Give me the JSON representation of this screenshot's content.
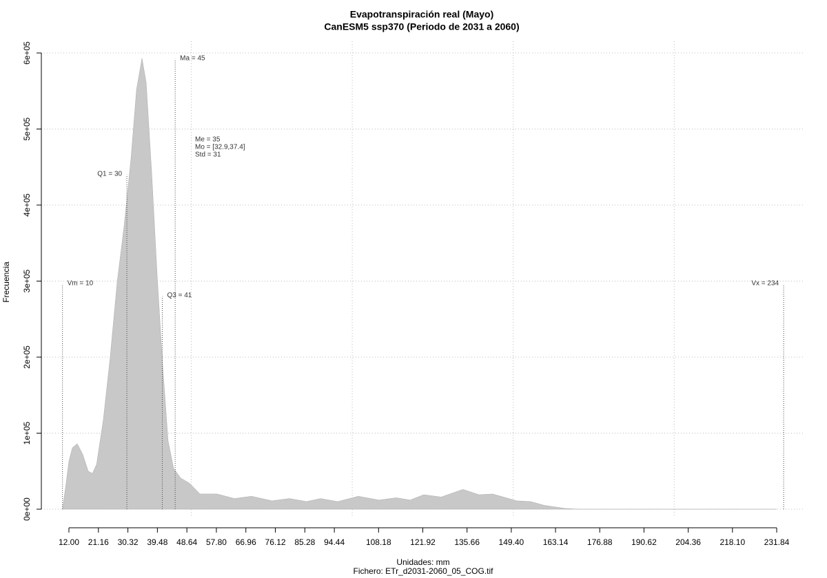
{
  "chart_data": {
    "type": "area",
    "title": "Evapotranspiración real (Mayo)",
    "subtitle": "CanESM5 ssp370 (Periodo de 2031 a 2060)",
    "xlabel": "Unidades: mm",
    "footer": "Fichero: ETr_d2031-2060_05_COG.tif",
    "ylabel": "Frecuencia",
    "color": "#c8c8c8",
    "x": [
      10,
      11,
      12,
      13.1,
      14.6,
      16.3,
      18,
      19.3,
      20.6,
      22.7,
      24.8,
      27,
      29.1,
      31.3,
      33,
      34.7,
      36,
      37.7,
      39.4,
      41.1,
      42.8,
      44.5,
      46.7,
      49.5,
      52.7,
      58,
      63.4,
      68.7,
      75.1,
      80.5,
      85.8,
      90.1,
      95.5,
      101.9,
      108.3,
      113.7,
      118,
      122.2,
      127.6,
      134.4,
      139.4,
      143.6,
      151.1,
      155.4,
      159.7,
      166.1,
      170.4,
      231.84
    ],
    "values": [
      0,
      30000,
      63000,
      81000,
      86000,
      72000,
      50000,
      47000,
      59000,
      118000,
      199000,
      299000,
      371000,
      462000,
      552000,
      593000,
      561000,
      443000,
      308000,
      190000,
      90000,
      54000,
      41000,
      34000,
      20000,
      20000,
      14000,
      17000,
      11000,
      14000,
      10000,
      14000,
      10000,
      17000,
      12000,
      15000,
      12000,
      19000,
      16000,
      26000,
      19000,
      20000,
      11000,
      10000,
      5000,
      1000,
      0,
      0
    ],
    "xlim": [
      12,
      231.84
    ],
    "ylim": [
      0,
      600000
    ],
    "xticks": [
      {
        "value": 12,
        "label": "12.00"
      },
      21.16,
      30.32,
      39.48,
      48.64,
      {
        "value": 57.8,
        "label": "57.80"
      },
      66.96,
      76.12,
      85.28,
      94.44,
      108.18,
      121.92,
      135.66,
      {
        "value": 149.4,
        "label": "149.40"
      },
      163.14,
      176.88,
      190.62,
      204.36,
      {
        "value": 218.1,
        "label": "218.10"
      },
      231.84
    ],
    "yticks": [
      {
        "value": 0,
        "label": "0e+00"
      },
      {
        "value": 100000,
        "label": "1e+05"
      },
      {
        "value": 200000,
        "label": "2e+05"
      },
      {
        "value": 300000,
        "label": "3e+05"
      },
      {
        "value": 400000,
        "label": "4e+05"
      },
      {
        "value": 500000,
        "label": "5e+05"
      },
      {
        "value": 600000,
        "label": "6e+05"
      }
    ],
    "xgrid": [
      50,
      100,
      150,
      200
    ],
    "grid": true,
    "markers": [
      {
        "label": "Vm = 10",
        "x": 10,
        "top": 296000
      },
      {
        "label": "Q1 = 30",
        "x": 30,
        "top": 440000
      },
      {
        "label": "Q3 = 41",
        "x": 41,
        "top": 280000
      },
      {
        "label": "Ma = 45",
        "x": 45,
        "top": 592000
      },
      {
        "label": "Vx = 234",
        "x": 234,
        "top": 296000
      }
    ],
    "stats": [
      "Me = 35",
      "Mo = [32.9,37.4]",
      "Std = 31"
    ]
  }
}
